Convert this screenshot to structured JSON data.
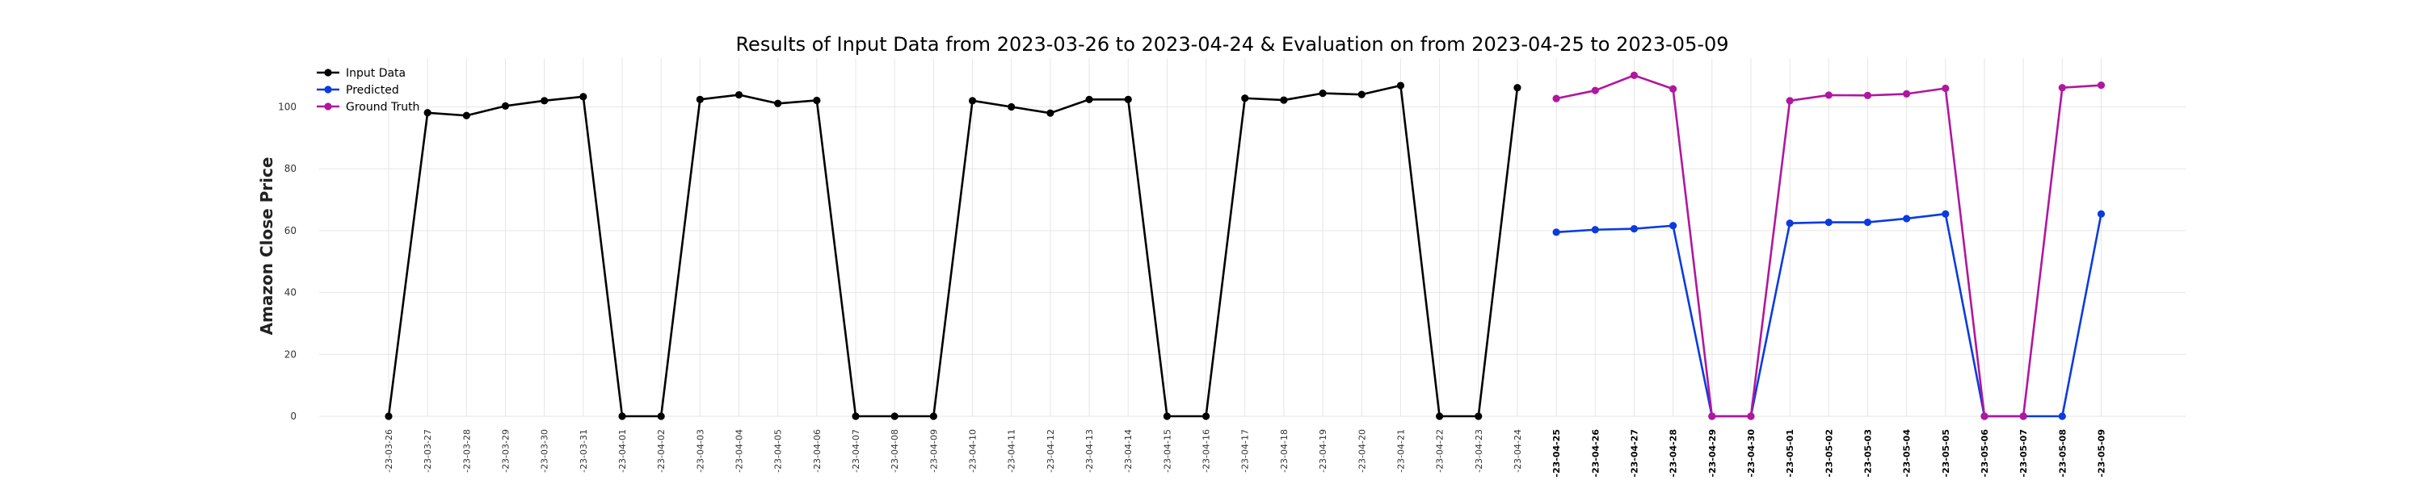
{
  "chart_data": {
    "type": "line",
    "title": "Results of Input Data from 2023-03-26 to 2023-04-24 & Evaluation on from 2023-04-25 to 2023-05-09",
    "ylabel": "Amazon Close Price",
    "xlabel": "",
    "ylim": [
      0,
      110
    ],
    "yticks": [
      0,
      20,
      40,
      60,
      80,
      100
    ],
    "grid": true,
    "legend_position": "top-left",
    "tick_label_prefix": "-",
    "categories": [
      "2023-03-26",
      "2023-03-27",
      "2023-03-28",
      "2023-03-29",
      "2023-03-30",
      "2023-03-31",
      "2023-04-01",
      "2023-04-02",
      "2023-04-03",
      "2023-04-04",
      "2023-04-05",
      "2023-04-06",
      "2023-04-07",
      "2023-04-08",
      "2023-04-09",
      "2023-04-10",
      "2023-04-11",
      "2023-04-12",
      "2023-04-13",
      "2023-04-14",
      "2023-04-15",
      "2023-04-16",
      "2023-04-17",
      "2023-04-18",
      "2023-04-19",
      "2023-04-20",
      "2023-04-21",
      "2023-04-22",
      "2023-04-23",
      "2023-04-24",
      "2023-04-25",
      "2023-04-26",
      "2023-04-27",
      "2023-04-28",
      "2023-04-29",
      "2023-04-30",
      "2023-05-01",
      "2023-05-02",
      "2023-05-03",
      "2023-05-04",
      "2023-05-05",
      "2023-05-06",
      "2023-05-07",
      "2023-05-08",
      "2023-05-09"
    ],
    "series": [
      {
        "name": "Input Data",
        "color": "#000000",
        "x": [
          "2023-03-26",
          "2023-03-27",
          "2023-03-28",
          "2023-03-29",
          "2023-03-30",
          "2023-03-31",
          "2023-04-01",
          "2023-04-02",
          "2023-04-03",
          "2023-04-04",
          "2023-04-05",
          "2023-04-06",
          "2023-04-07",
          "2023-04-08",
          "2023-04-09",
          "2023-04-10",
          "2023-04-11",
          "2023-04-12",
          "2023-04-13",
          "2023-04-14",
          "2023-04-15",
          "2023-04-16",
          "2023-04-17",
          "2023-04-18",
          "2023-04-19",
          "2023-04-20",
          "2023-04-21",
          "2023-04-22",
          "2023-04-23",
          "2023-04-24"
        ],
        "values": [
          0,
          98.1,
          97.2,
          100.3,
          102.0,
          103.3,
          0,
          0,
          102.4,
          103.9,
          101.1,
          102.1,
          0,
          0,
          0,
          102.0,
          100.0,
          98.0,
          102.4,
          102.4,
          0,
          0,
          102.8,
          102.2,
          104.4,
          104.0,
          106.9,
          0,
          0,
          106.2
        ]
      },
      {
        "name": "Predicted",
        "color": "#0a3be0",
        "x": [
          "2023-04-25",
          "2023-04-26",
          "2023-04-27",
          "2023-04-28",
          "2023-04-29",
          "2023-04-30",
          "2023-05-01",
          "2023-05-02",
          "2023-05-03",
          "2023-05-04",
          "2023-05-05",
          "2023-05-06",
          "2023-05-07",
          "2023-05-08",
          "2023-05-09"
        ],
        "values": [
          59.5,
          60.3,
          60.6,
          61.6,
          0,
          0,
          62.4,
          62.7,
          62.7,
          63.9,
          65.4,
          0,
          0,
          0,
          65.4
        ]
      },
      {
        "name": "Ground Truth",
        "color": "#b0179e",
        "x": [
          "2023-04-25",
          "2023-04-26",
          "2023-04-27",
          "2023-04-28",
          "2023-04-29",
          "2023-04-30",
          "2023-05-01",
          "2023-05-02",
          "2023-05-03",
          "2023-05-04",
          "2023-05-05",
          "2023-05-06",
          "2023-05-07",
          "2023-05-08",
          "2023-05-09"
        ],
        "values": [
          102.7,
          105.3,
          110.2,
          105.8,
          0,
          0,
          102.0,
          103.8,
          103.7,
          104.2,
          106.0,
          0,
          0,
          106.2,
          107.0
        ]
      }
    ]
  }
}
